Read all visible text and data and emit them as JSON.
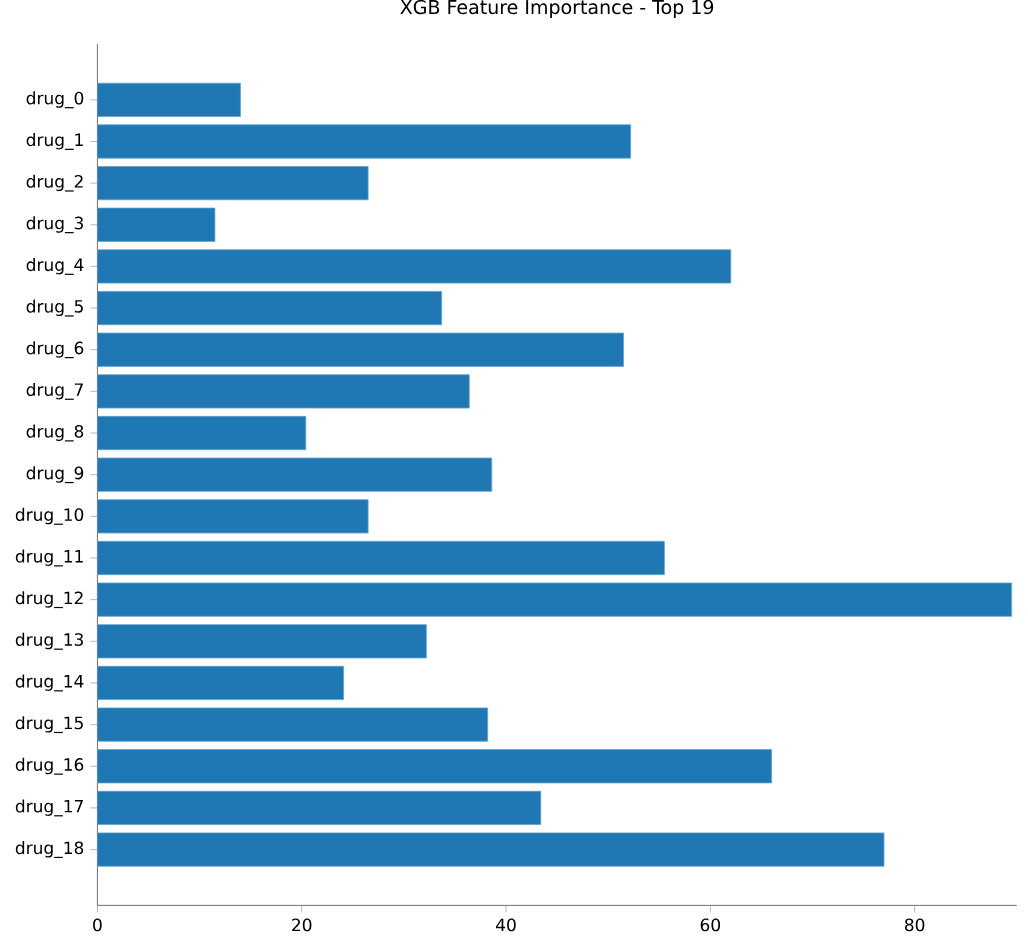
{
  "chart_data": {
    "type": "bar",
    "orientation": "horizontal",
    "title": "XGB Feature Importance - Top 19",
    "categories": [
      "drug_0",
      "drug_1",
      "drug_2",
      "drug_3",
      "drug_4",
      "drug_5",
      "drug_6",
      "drug_7",
      "drug_8",
      "drug_9",
      "drug_10",
      "drug_11",
      "drug_12",
      "drug_13",
      "drug_14",
      "drug_15",
      "drug_16",
      "drug_17",
      "drug_18"
    ],
    "values": [
      14.0,
      52.2,
      26.5,
      11.5,
      62.0,
      33.7,
      51.5,
      36.4,
      20.4,
      38.6,
      26.5,
      55.5,
      89.5,
      32.2,
      24.1,
      38.2,
      66.0,
      43.4,
      77.0
    ],
    "color": "#1f77b4",
    "xlim": [
      0,
      90
    ],
    "xticks": [
      0,
      20,
      40,
      60,
      80
    ]
  }
}
